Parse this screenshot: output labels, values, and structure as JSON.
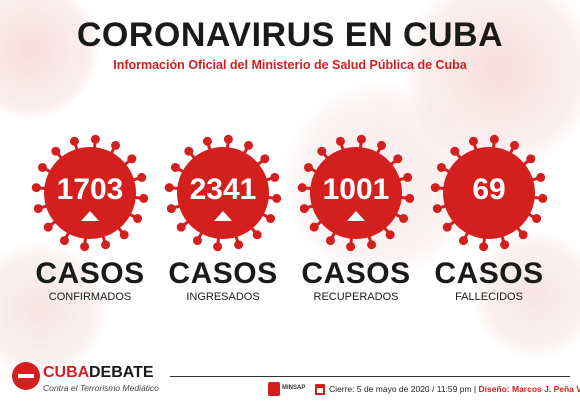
{
  "header": {
    "title": "CORONAVIRUS EN CUBA",
    "subtitle": "Información Oficial del Ministerio de Salud Pública de Cuba"
  },
  "stats": [
    {
      "value": "1703",
      "casos": "CASOS",
      "label": "CONFIRMADOS",
      "trend": "up"
    },
    {
      "value": "2341",
      "casos": "CASOS",
      "label": "INGRESADOS",
      "trend": "up"
    },
    {
      "value": "1001",
      "casos": "CASOS",
      "label": "RECUPERADOS",
      "trend": "up"
    },
    {
      "value": "69",
      "casos": "CASOS",
      "label": "FALLECIDOS",
      "trend": "none"
    }
  ],
  "footer": {
    "logo_cuba": "CUBA",
    "logo_debate": "DEBATE",
    "logo_tagline": "Contra el Terrorismo Mediático",
    "minsap": "MINSAP",
    "date_text": "Cierre: 5 de mayo de 2020 / 11:59 pm | ",
    "design_text": "Diseño: Marcos J. Peña Villa"
  },
  "colors": {
    "accent": "#d41f1f",
    "text": "#1a1a1a"
  },
  "icons": {
    "virus": "virus-icon",
    "trend": "triangle-up-icon",
    "calendar": "calendar-icon"
  }
}
